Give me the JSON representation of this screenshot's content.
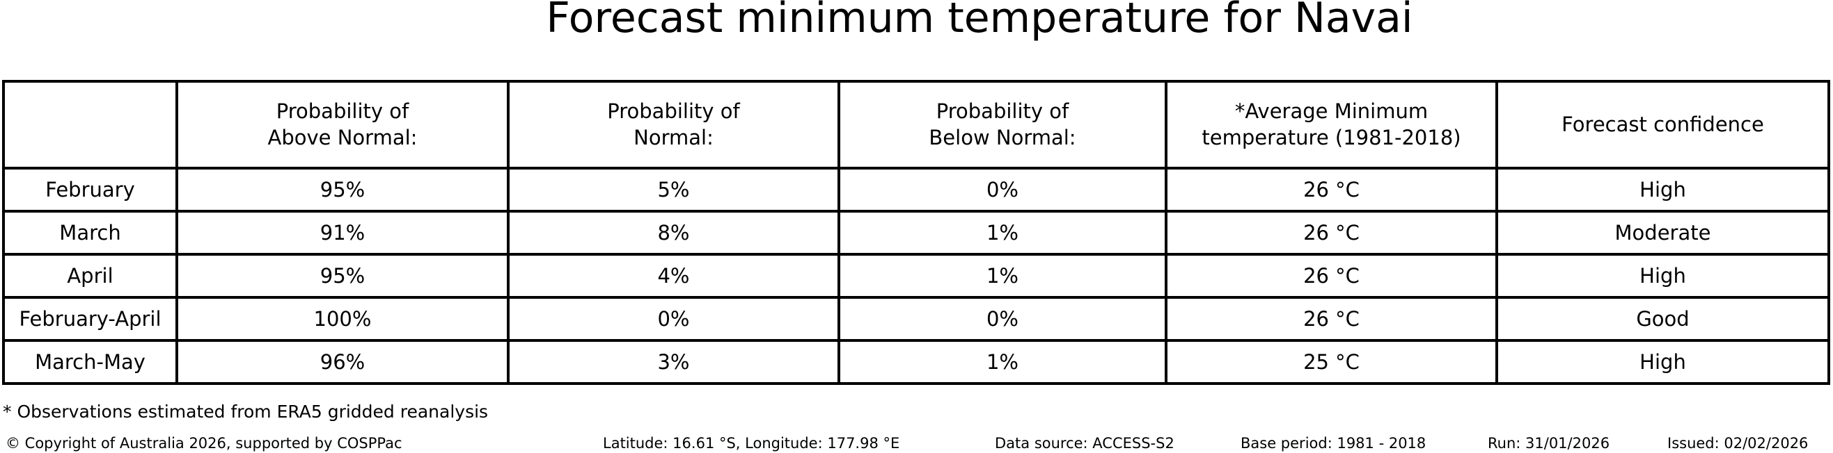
{
  "title": "Forecast minimum temperature for Navai",
  "display": {
    "headers": [
      "Probability of\nAbove Normal:",
      "Probability of\nNormal:",
      "Probability of\nBelow Normal:",
      "*Average Minimum\ntemperature (1981-2018)",
      "Forecast confidence"
    ]
  },
  "chart_data": {
    "type": "table",
    "title": "Forecast minimum temperature for Navai",
    "columns": [
      "",
      "Probability of Above Normal:",
      "Probability of Normal:",
      "Probability of Below Normal:",
      "*Average Minimum temperature (1981-2018)",
      "Forecast confidence"
    ],
    "rows": [
      [
        "February",
        "95%",
        "5%",
        "0%",
        "26 °C",
        "High"
      ],
      [
        "March",
        "91%",
        "8%",
        "1%",
        "26 °C",
        "Moderate"
      ],
      [
        "April",
        "95%",
        "4%",
        "1%",
        "26 °C",
        "High"
      ],
      [
        "February-April",
        "100%",
        "0%",
        "0%",
        "26 °C",
        "Good"
      ],
      [
        "March-May",
        "96%",
        "3%",
        "1%",
        "25 °C",
        "High"
      ]
    ]
  },
  "footnote": "* Observations estimated from ERA5 gridded reanalysis",
  "footer": {
    "copyright": "© Copyright of Australia 2026, supported by COSPPac",
    "location": "Latitude: 16.61 °S, Longitude: 177.98 °E",
    "data_source": "Data source: ACCESS-S2",
    "base_period": "Base period: 1981 - 2018",
    "run": "Run: 31/01/2026",
    "issued": "Issued: 02/02/2026"
  },
  "colors": {
    "background": "#ffffff",
    "text": "#000000",
    "border": "#000000"
  }
}
